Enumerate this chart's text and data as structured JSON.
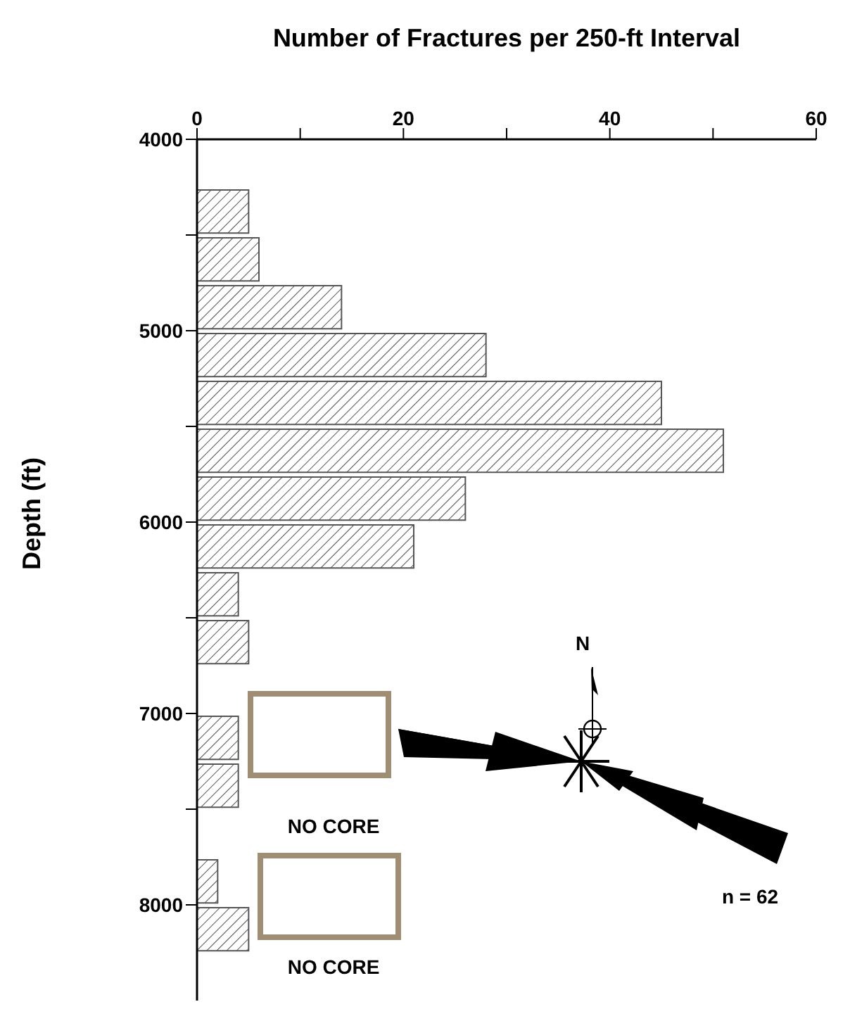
{
  "chart_data": {
    "type": "histogram",
    "orientation": "horizontal",
    "xlabel": "Number of Fractures per 250-ft Interval",
    "ylabel": "Depth (ft)",
    "bins": [
      4250,
      4500,
      4750,
      5000,
      5250,
      5500,
      5750,
      6000,
      6250,
      6500,
      6750,
      7000,
      7250,
      7500,
      7750,
      8000,
      8250
    ],
    "values": [
      5,
      6,
      14,
      28,
      45,
      51,
      26,
      21,
      4,
      5,
      0,
      4,
      4,
      0,
      2,
      5
    ],
    "color": "#555555",
    "xlim": [
      0,
      60
    ],
    "xticks": [
      0,
      {
        "value": 10,
        "label": null
      },
      20,
      {
        "value": 30,
        "label": null
      },
      40,
      {
        "value": 50,
        "label": null
      },
      60
    ],
    "ylim": [
      8500,
      4000
    ],
    "yticks": [
      4000,
      {
        "value": 4500,
        "label": null
      },
      5000,
      {
        "value": 5500,
        "label": null
      },
      6000,
      {
        "value": 6500,
        "label": null
      },
      7000,
      {
        "value": 7500,
        "label": null
      },
      8000
    ],
    "annotations": [
      "NO CORE",
      "NO CORE",
      "N",
      "n = 62"
    ]
  }
}
